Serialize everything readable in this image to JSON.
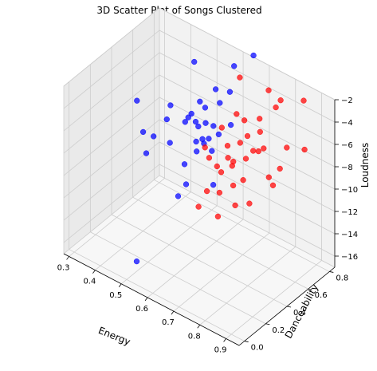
{
  "chart_data": {
    "type": "scatter",
    "title": "3D Scatter Plot of Songs Clustered",
    "xlabel": "Energy",
    "ylabel": "Danceability",
    "zlabel": "Loudness",
    "xlim": [
      0.28,
      0.95
    ],
    "ylim": [
      -0.05,
      0.85
    ],
    "zlim": [
      -17,
      -2
    ],
    "xticks": [
      "0.3",
      "0.4",
      "0.5",
      "0.6",
      "0.7",
      "0.8",
      "0.9"
    ],
    "yticks": [
      "0.0",
      "0.2",
      "0.4",
      "0.6",
      "0.8"
    ],
    "zticks": [
      "−2",
      "−4",
      "−6",
      "−8",
      "−10",
      "−12",
      "−14",
      "−16"
    ],
    "grid": true,
    "legend": "none",
    "colors": {
      "cluster_blue": "#0000ff",
      "cluster_red": "#ff0000"
    },
    "series": [
      {
        "color": "#0000ff",
        "points": [
          {
            "x": 0.51,
            "y": 0.07,
            "z": -15.8
          },
          {
            "x": 0.32,
            "y": 0.54,
            "z": -7.4
          },
          {
            "x": 0.36,
            "y": 0.5,
            "z": -9.4
          },
          {
            "x": 0.4,
            "y": 0.5,
            "z": -9.3
          },
          {
            "x": 0.38,
            "y": 0.48,
            "z": -10.9
          },
          {
            "x": 0.43,
            "y": 0.55,
            "z": -7.8
          },
          {
            "x": 0.44,
            "y": 0.56,
            "z": -6.5
          },
          {
            "x": 0.45,
            "y": 0.53,
            "z": -9.5
          },
          {
            "x": 0.47,
            "y": 0.71,
            "z": -3.4
          },
          {
            "x": 0.48,
            "y": 0.6,
            "z": -7.8
          },
          {
            "x": 0.5,
            "y": 0.61,
            "z": -6.9
          },
          {
            "x": 0.5,
            "y": 0.58,
            "z": -7.0
          },
          {
            "x": 0.52,
            "y": 0.6,
            "z": -7.3
          },
          {
            "x": 0.52,
            "y": 0.64,
            "z": -5.8
          },
          {
            "x": 0.51,
            "y": 0.52,
            "z": -10.6
          },
          {
            "x": 0.52,
            "y": 0.51,
            "z": -12.2
          },
          {
            "x": 0.51,
            "y": 0.46,
            "z": -13.0
          },
          {
            "x": 0.53,
            "y": 0.58,
            "z": -8.8
          },
          {
            "x": 0.54,
            "y": 0.64,
            "z": -6.1
          },
          {
            "x": 0.54,
            "y": 0.56,
            "z": -9.4
          },
          {
            "x": 0.55,
            "y": 0.62,
            "z": -7.2
          },
          {
            "x": 0.56,
            "y": 0.69,
            "z": -4.6
          },
          {
            "x": 0.56,
            "y": 0.58,
            "z": -8.6
          },
          {
            "x": 0.57,
            "y": 0.6,
            "z": -8.2
          },
          {
            "x": 0.58,
            "y": 0.68,
            "z": -5.5
          },
          {
            "x": 0.58,
            "y": 0.62,
            "z": -7.1
          },
          {
            "x": 0.59,
            "y": 0.58,
            "z": -8.9
          },
          {
            "x": 0.6,
            "y": 0.62,
            "z": -7.6
          },
          {
            "x": 0.61,
            "y": 0.74,
            "z": -2.3
          },
          {
            "x": 0.61,
            "y": 0.7,
            "z": -4.3
          },
          {
            "x": 0.62,
            "y": 0.52,
            "z": -11.1
          },
          {
            "x": 0.63,
            "y": 0.66,
            "z": -6.7
          },
          {
            "x": 0.66,
            "y": 0.8,
            "z": -1.2
          },
          {
            "x": 0.55,
            "y": 0.59,
            "z": -8.4
          },
          {
            "x": 0.53,
            "y": 0.6,
            "z": -7.6
          }
        ]
      },
      {
        "color": "#ff0000",
        "points": [
          {
            "x": 0.58,
            "y": 0.54,
            "z": -8.4
          },
          {
            "x": 0.6,
            "y": 0.53,
            "z": -9.0
          },
          {
            "x": 0.6,
            "y": 0.43,
            "z": -12.6
          },
          {
            "x": 0.62,
            "y": 0.46,
            "z": -11.2
          },
          {
            "x": 0.62,
            "y": 0.6,
            "z": -6.6
          },
          {
            "x": 0.63,
            "y": 0.53,
            "z": -9.4
          },
          {
            "x": 0.64,
            "y": 0.72,
            "z": -2.8
          },
          {
            "x": 0.65,
            "y": 0.58,
            "z": -7.7
          },
          {
            "x": 0.65,
            "y": 0.52,
            "z": -9.6
          },
          {
            "x": 0.66,
            "y": 0.64,
            "z": -5.2
          },
          {
            "x": 0.66,
            "y": 0.48,
            "z": -11.0
          },
          {
            "x": 0.67,
            "y": 0.44,
            "z": -12.7
          },
          {
            "x": 0.68,
            "y": 0.56,
            "z": -8.6
          },
          {
            "x": 0.69,
            "y": 0.64,
            "z": -5.4
          },
          {
            "x": 0.69,
            "y": 0.6,
            "z": -7.1
          },
          {
            "x": 0.7,
            "y": 0.51,
            "z": -10.1
          },
          {
            "x": 0.71,
            "y": 0.62,
            "z": -6.4
          },
          {
            "x": 0.72,
            "y": 0.58,
            "z": -8.0
          },
          {
            "x": 0.72,
            "y": 0.48,
            "z": -11.4
          },
          {
            "x": 0.73,
            "y": 0.53,
            "z": -9.4
          },
          {
            "x": 0.74,
            "y": 0.6,
            "z": -7.2
          },
          {
            "x": 0.74,
            "y": 0.66,
            "z": -4.8
          },
          {
            "x": 0.75,
            "y": 0.72,
            "z": -2.6
          },
          {
            "x": 0.75,
            "y": 0.64,
            "z": -5.7
          },
          {
            "x": 0.76,
            "y": 0.6,
            "z": -7.0
          },
          {
            "x": 0.77,
            "y": 0.49,
            "z": -10.7
          },
          {
            "x": 0.78,
            "y": 0.6,
            "z": -6.5
          },
          {
            "x": 0.79,
            "y": 0.69,
            "z": -3.4
          },
          {
            "x": 0.8,
            "y": 0.71,
            "z": -2.8
          },
          {
            "x": 0.82,
            "y": 0.55,
            "z": -8.2
          },
          {
            "x": 0.84,
            "y": 0.54,
            "z": -8.6
          },
          {
            "x": 0.85,
            "y": 0.58,
            "z": -7.3
          },
          {
            "x": 0.86,
            "y": 0.62,
            "z": -5.6
          },
          {
            "x": 0.88,
            "y": 0.73,
            "z": -2.0
          },
          {
            "x": 0.92,
            "y": 0.64,
            "z": -5.2
          },
          {
            "x": 0.68,
            "y": 0.55,
            "z": -8.9
          },
          {
            "x": 0.66,
            "y": 0.56,
            "z": -8.5
          }
        ]
      }
    ]
  }
}
